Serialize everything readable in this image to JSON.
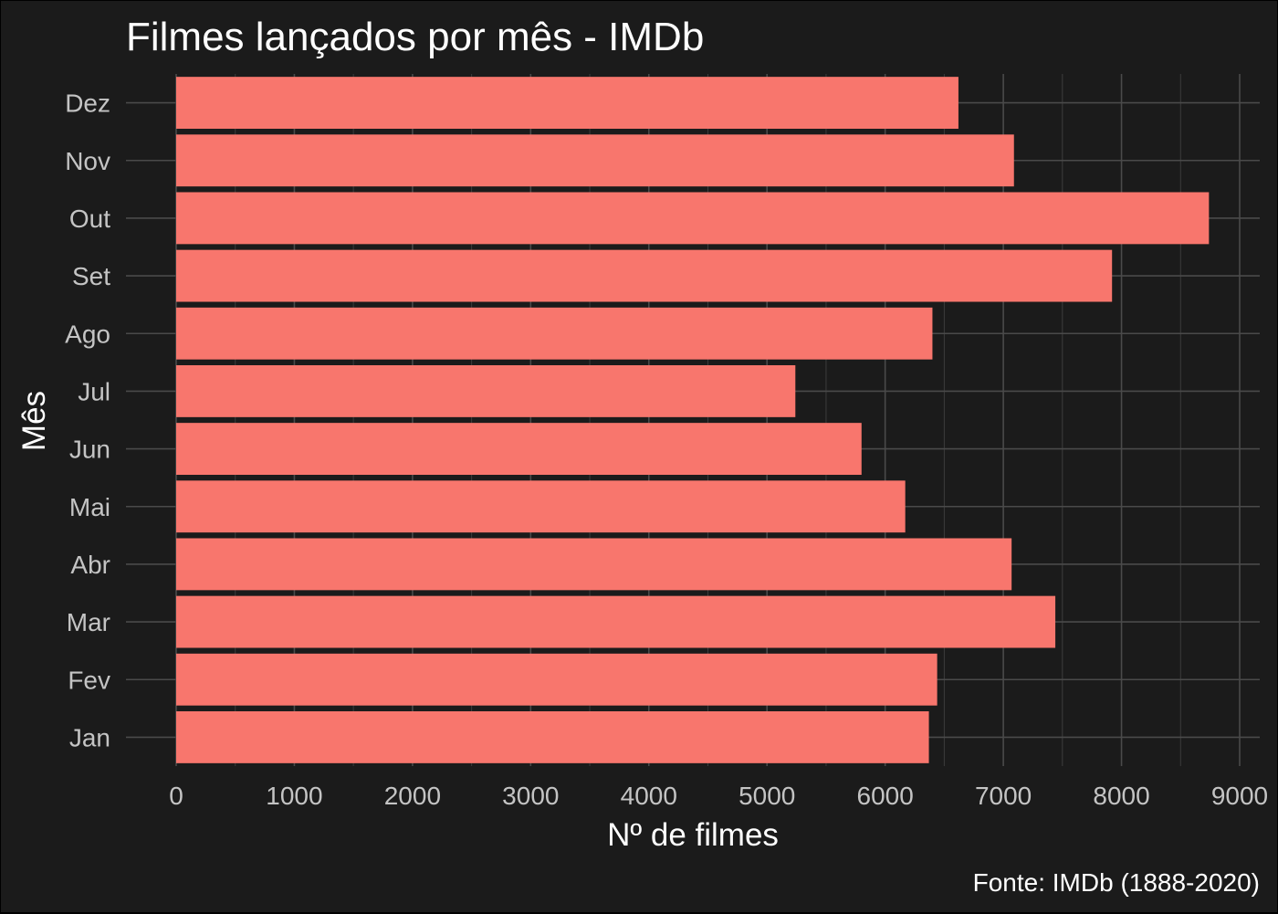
{
  "chart_data": {
    "type": "bar",
    "orientation": "horizontal",
    "title": "Filmes lançados por mês - IMDb",
    "xlabel": "Nº de filmes",
    "ylabel": "Mês",
    "caption": "Fonte: IMDb (1888-2020)",
    "categories": [
      "Jan",
      "Fev",
      "Mar",
      "Abr",
      "Mai",
      "Jun",
      "Jul",
      "Ago",
      "Set",
      "Out",
      "Nov",
      "Dez"
    ],
    "values": [
      6370,
      6440,
      7440,
      7070,
      6170,
      5800,
      5240,
      6400,
      7920,
      8740,
      7090,
      6620
    ],
    "xlim": [
      0,
      9000
    ],
    "xticks": [
      0,
      1000,
      2000,
      3000,
      4000,
      5000,
      6000,
      7000,
      8000,
      9000
    ],
    "grid": true,
    "legend": "none",
    "colors": {
      "bar": "#F8766D",
      "background": "#1b1b1b",
      "grid": "#4a4a4a",
      "text": "#ffffff",
      "tick_text": "#c4c4c4"
    }
  }
}
